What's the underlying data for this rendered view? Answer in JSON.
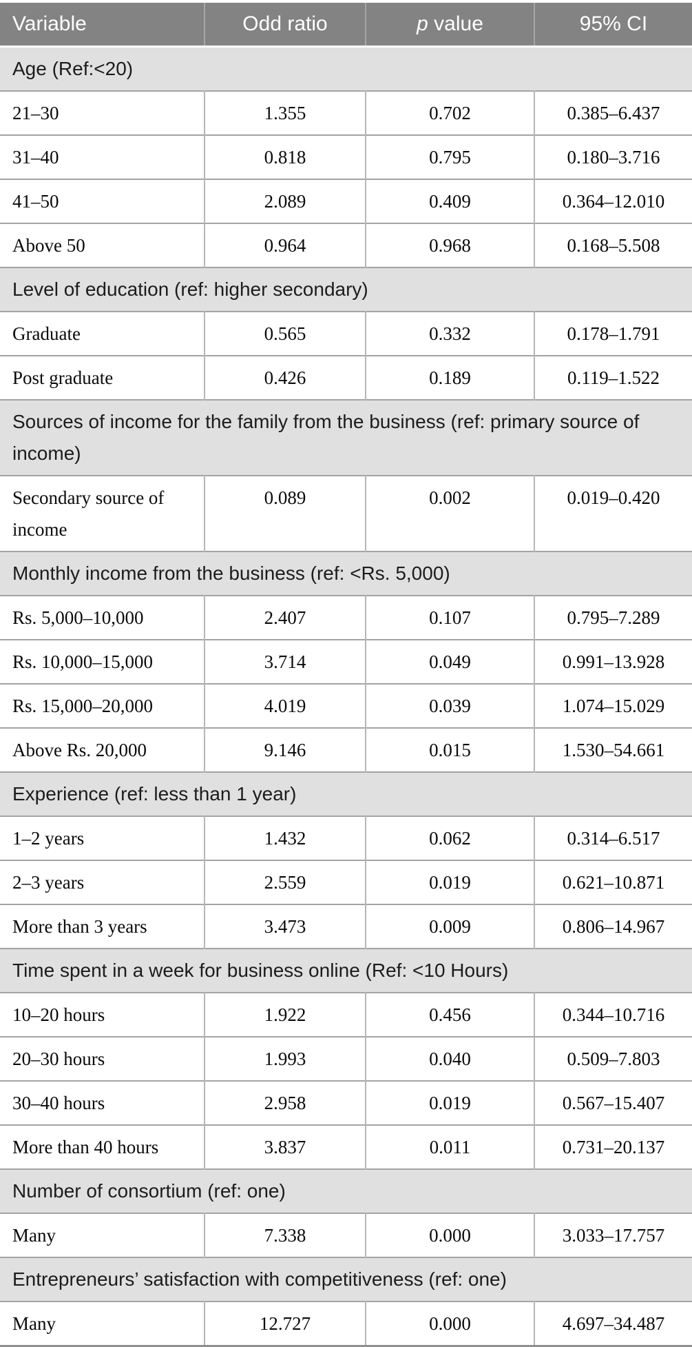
{
  "colors": {
    "header_bg": "#838383",
    "header_text": "#ffffff",
    "section_bg": "#e0e0e0",
    "section_text": "#1c1c1c",
    "row_bg": "#ffffff",
    "data_text": "#0a0a0a",
    "row_border": "#a3a3a3",
    "col_divider": "#b6b6b6",
    "header_divider": "#a6a6a6",
    "table_bottom": "#8f8f8f"
  },
  "table": {
    "headers": {
      "variable": "Variable",
      "odd_ratio": "Odd ratio",
      "p_italic": "p",
      "p_rest": "value",
      "ci": "95% CI"
    },
    "rows": [
      {
        "type": "section",
        "label": "Age (Ref:<20)"
      },
      {
        "type": "data",
        "variable": "21–30",
        "odd_ratio": "1.355",
        "p_value": "0.702",
        "ci": "0.385–6.437"
      },
      {
        "type": "data",
        "variable": "31–40",
        "odd_ratio": "0.818",
        "p_value": "0.795",
        "ci": "0.180–3.716"
      },
      {
        "type": "data",
        "variable": "41–50",
        "odd_ratio": "2.089",
        "p_value": "0.409",
        "ci": "0.364–12.010"
      },
      {
        "type": "data",
        "variable": "Above 50",
        "odd_ratio": "0.964",
        "p_value": "0.968",
        "ci": "0.168–5.508"
      },
      {
        "type": "section",
        "label": "Level of education (ref: higher secondary)"
      },
      {
        "type": "data",
        "variable": "Graduate",
        "odd_ratio": "0.565",
        "p_value": "0.332",
        "ci": "0.178–1.791"
      },
      {
        "type": "data",
        "variable": "Post graduate",
        "odd_ratio": "0.426",
        "p_value": "0.189",
        "ci": "0.119–1.522"
      },
      {
        "type": "section",
        "label": "Sources of income for the family from the business (ref: primary source of income)"
      },
      {
        "type": "data",
        "variable": "Secondary source of income",
        "odd_ratio": "0.089",
        "p_value": "0.002",
        "ci": "0.019–0.420"
      },
      {
        "type": "section",
        "label": "Monthly income from the business (ref: <Rs. 5,000)"
      },
      {
        "type": "data",
        "variable": "Rs. 5,000–10,000",
        "odd_ratio": "2.407",
        "p_value": "0.107",
        "ci": "0.795–7.289"
      },
      {
        "type": "data",
        "variable": "Rs. 10,000–15,000",
        "odd_ratio": "3.714",
        "p_value": "0.049",
        "ci": "0.991–13.928"
      },
      {
        "type": "data",
        "variable": "Rs. 15,000–20,000",
        "odd_ratio": "4.019",
        "p_value": "0.039",
        "ci": "1.074–15.029"
      },
      {
        "type": "data",
        "variable": "Above Rs. 20,000",
        "odd_ratio": "9.146",
        "p_value": "0.015",
        "ci": "1.530–54.661"
      },
      {
        "type": "section",
        "label": "Experience (ref: less than 1 year)"
      },
      {
        "type": "data",
        "variable": "1–2 years",
        "odd_ratio": "1.432",
        "p_value": "0.062",
        "ci": "0.314–6.517"
      },
      {
        "type": "data",
        "variable": "2–3 years",
        "odd_ratio": "2.559",
        "p_value": "0.019",
        "ci": "0.621–10.871"
      },
      {
        "type": "data",
        "variable": "More than 3 years",
        "odd_ratio": "3.473",
        "p_value": "0.009",
        "ci": "0.806–14.967"
      },
      {
        "type": "section",
        "label": "Time spent in a week for business online (Ref: <10 Hours)"
      },
      {
        "type": "data",
        "variable": "10–20 hours",
        "odd_ratio": "1.922",
        "p_value": "0.456",
        "ci": "0.344–10.716"
      },
      {
        "type": "data",
        "variable": "20–30 hours",
        "odd_ratio": "1.993",
        "p_value": "0.040",
        "ci": "0.509–7.803"
      },
      {
        "type": "data",
        "variable": "30–40 hours",
        "odd_ratio": "2.958",
        "p_value": "0.019",
        "ci": "0.567–15.407"
      },
      {
        "type": "data",
        "variable": "More than 40 hours",
        "odd_ratio": "3.837",
        "p_value": "0.011",
        "ci": "0.731–20.137"
      },
      {
        "type": "section",
        "label": "Number of consortium (ref: one)"
      },
      {
        "type": "data",
        "variable": "Many",
        "odd_ratio": "7.338",
        "p_value": "0.000",
        "ci": "3.033–17.757"
      },
      {
        "type": "section",
        "label": "Entrepreneurs’ satisfaction with competitiveness (ref: one)"
      },
      {
        "type": "data",
        "variable": "Many",
        "odd_ratio": "12.727",
        "p_value": "0.000",
        "ci": "4.697–34.487"
      }
    ]
  }
}
